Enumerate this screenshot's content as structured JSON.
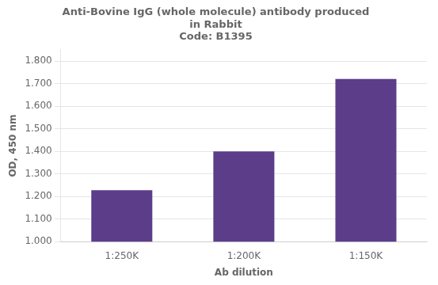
{
  "chart_data": {
    "type": "bar",
    "title": "Anti-Bovine IgG (whole molecule) antibody produced\nin Rabbit\nCode: B1395",
    "categories": [
      "1:250K",
      "1:200K",
      "1:150K"
    ],
    "values": [
      1.228,
      1.4,
      1.72
    ],
    "color": "#5b3d8a",
    "xlabel": "Ab dilution",
    "ylabel": "OD, 450 nm",
    "ylim": [
      1.0,
      1.85
    ],
    "yticks": [
      {
        "value": 1.0,
        "label": "1.000"
      },
      {
        "value": 1.1,
        "label": "1.100"
      },
      {
        "value": 1.2,
        "label": "1.200"
      },
      {
        "value": 1.3,
        "label": "1.300"
      },
      {
        "value": 1.4,
        "label": "1.400"
      },
      {
        "value": 1.5,
        "label": "1.500"
      },
      {
        "value": 1.6,
        "label": "1.600"
      },
      {
        "value": 1.7,
        "label": "1.700"
      },
      {
        "value": 1.8,
        "label": "1.800"
      }
    ],
    "grid": true
  }
}
